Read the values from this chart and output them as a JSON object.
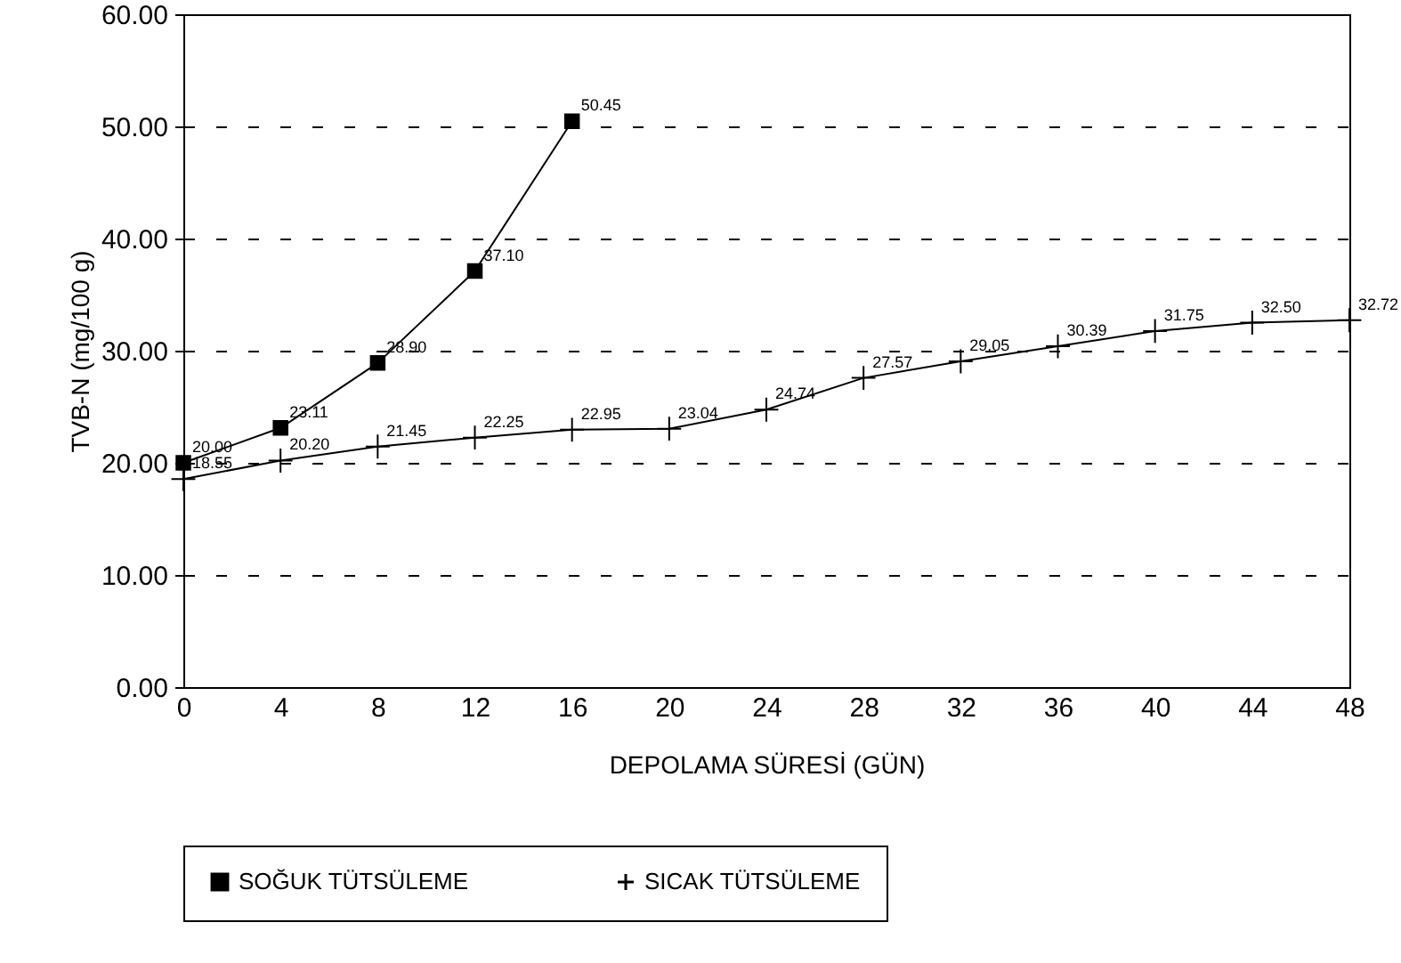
{
  "chart_data": {
    "type": "line",
    "x": [
      0,
      4,
      8,
      12,
      16,
      20,
      24,
      28,
      32,
      36,
      40,
      44,
      48
    ],
    "xlabel": "DEPOLAMA SÜRESİ (GÜN)",
    "ylabel": "TVB-N (mg/100 g)",
    "xlim": [
      0,
      48
    ],
    "xticks": [
      0,
      4,
      8,
      12,
      16,
      20,
      24,
      28,
      32,
      36,
      40,
      44,
      48
    ],
    "ylim": [
      0,
      60
    ],
    "yticks": [
      {
        "value": 0,
        "label": "0.00"
      },
      {
        "value": 10,
        "label": "10.00"
      },
      {
        "value": 20,
        "label": "20.00"
      },
      {
        "value": 30,
        "label": "30.00"
      },
      {
        "value": 40,
        "label": "40.00"
      },
      {
        "value": 50,
        "label": "50.00"
      },
      {
        "value": 60,
        "label": "60.00"
      }
    ],
    "grid": "y",
    "legend": "bottom",
    "series": [
      {
        "name": "SOĞUK TÜTSÜLEME",
        "color": "#000000",
        "marker": "square",
        "x": [
          0,
          4,
          8,
          12,
          16
        ],
        "values": [
          20.0,
          23.11,
          28.9,
          37.1,
          50.45
        ],
        "value_labels": [
          "20.00",
          "23.11",
          "28.90",
          "37.10",
          "50.45"
        ]
      },
      {
        "name": "SICAK TÜTSÜLEME",
        "color": "#000000",
        "marker": "cross",
        "values": [
          18.55,
          20.2,
          21.45,
          22.25,
          22.95,
          23.04,
          24.74,
          27.57,
          29.05,
          30.39,
          31.75,
          32.5,
          32.72
        ],
        "value_labels": [
          "18.55",
          "20.20",
          "21.45",
          "22.25",
          "22.95",
          "23.04",
          "24.74",
          "27.57",
          "29.05",
          "30.39",
          "31.75",
          "32.50",
          "32.72"
        ]
      }
    ]
  }
}
